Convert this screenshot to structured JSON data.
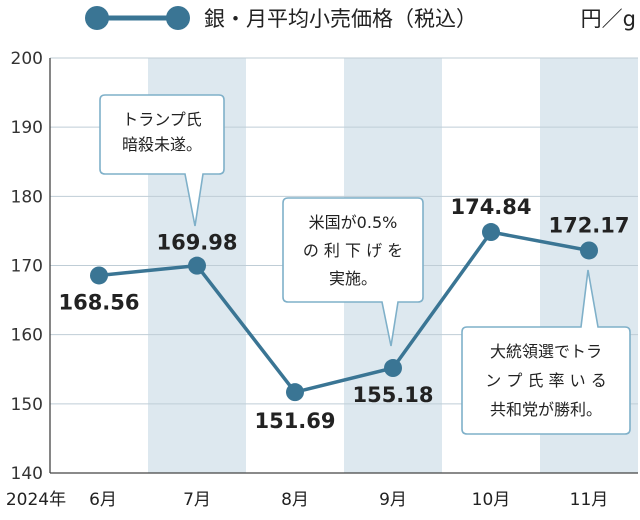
{
  "chart_data": {
    "type": "line",
    "series": [
      {
        "name": "銀・月平均小売価格（税込）",
        "color": "#3a7594",
        "values": [
          168.56,
          169.98,
          151.69,
          155.18,
          174.84,
          172.17
        ]
      }
    ],
    "categories": [
      "6月",
      "7月",
      "8月",
      "9月",
      "10月",
      "11月"
    ],
    "year_label": "2024年",
    "value_labels": [
      "168.56",
      "169.98",
      "151.69",
      "155.18",
      "174.84",
      "172.17"
    ],
    "unit": "円／g",
    "ylim": [
      140,
      200
    ],
    "yticks": [
      140,
      150,
      160,
      170,
      180,
      190,
      200
    ],
    "ytick_labels": [
      "140",
      "150",
      "160",
      "170",
      "180",
      "190",
      "200"
    ],
    "grid": true,
    "legend_position": "top",
    "shaded_columns": [
      "7月",
      "9月",
      "11月"
    ],
    "annotations": [
      {
        "target": "7月",
        "lines": [
          "トランプ氏",
          "暗殺未遂。"
        ]
      },
      {
        "target": "9月",
        "lines": [
          "米国が0.5%",
          "の 利 下 げ を",
          "実施。"
        ]
      },
      {
        "target": "11月",
        "lines": [
          "大統領選でトラ",
          "ン プ 氏 率 い る",
          "共和党が勝利。"
        ]
      }
    ],
    "colors": {
      "line": "#3a7594",
      "shade": "#dde8ef",
      "grid": "#bfcdd6",
      "callout_border": "#7fb0c9",
      "text": "#222222"
    }
  }
}
